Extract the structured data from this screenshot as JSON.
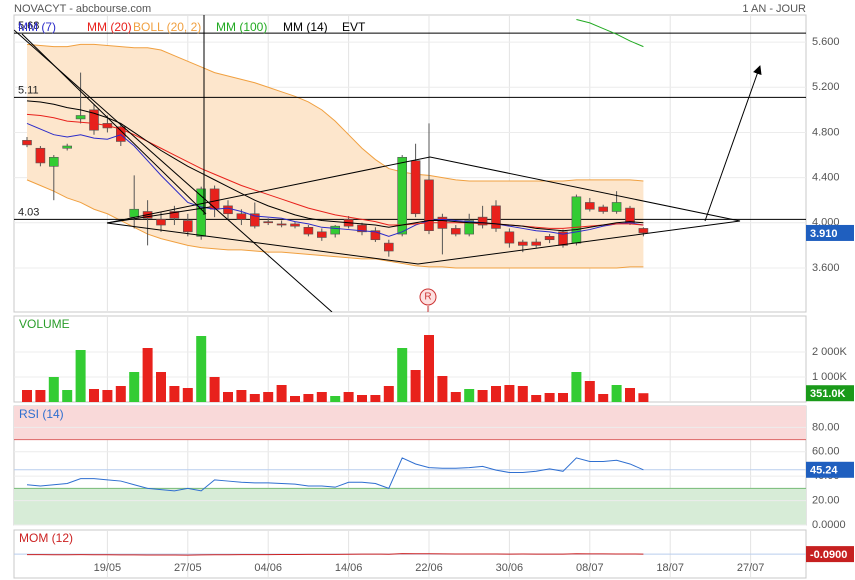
{
  "chart_data": [
    {
      "type": "candlestick",
      "title": "NOVACYT - abcbourse.com",
      "subtitle": "1 AN - JOUR",
      "categories": [
        null,
        null,
        null,
        null,
        null,
        null,
        "19/05",
        null,
        null,
        null,
        null,
        null,
        "27/05",
        null,
        null,
        null,
        null,
        null,
        "04/06",
        null,
        null,
        null,
        null,
        null,
        "14/06",
        null,
        null,
        null,
        null,
        null,
        "22/06",
        null,
        null,
        null,
        null,
        null,
        "30/06",
        null,
        null,
        null,
        null,
        null,
        "08/07",
        null,
        null,
        null,
        null,
        null,
        "18/07",
        null,
        null,
        null,
        null,
        null,
        "27/07",
        null,
        null,
        null,
        null
      ],
      "open": [
        4.73,
        4.66,
        4.5,
        4.66,
        4.92,
        5.0,
        4.88,
        4.85,
        4.05,
        4.1,
        4.03,
        4.1,
        4.02,
        3.88,
        4.3,
        4.15,
        4.08,
        4.08,
        4.01,
        3.99,
        3.99,
        3.96,
        3.92,
        3.9,
        4.03,
        3.98,
        3.93,
        3.82,
        3.9,
        4.55,
        4.38,
        4.05,
        3.95,
        3.9,
        4.05,
        4.15,
        3.92,
        3.83,
        3.83,
        3.88,
        3.92,
        3.82,
        4.18,
        4.14,
        4.1,
        4.13,
        3.95,
        null,
        null,
        null,
        null,
        null,
        null,
        null,
        null,
        null,
        null,
        null,
        null
      ],
      "high": [
        4.76,
        4.68,
        4.6,
        4.7,
        5.33,
        5.05,
        4.95,
        4.88,
        4.42,
        4.2,
        4.1,
        4.15,
        4.08,
        4.32,
        4.33,
        4.2,
        4.12,
        4.18,
        4.04,
        4.02,
        4.01,
        3.98,
        3.95,
        3.98,
        4.06,
        4.0,
        3.96,
        3.85,
        4.6,
        4.7,
        4.88,
        4.08,
        3.98,
        4.08,
        4.15,
        4.2,
        3.95,
        3.85,
        3.86,
        3.9,
        3.94,
        4.25,
        4.22,
        4.16,
        4.28,
        4.15,
        3.96,
        null,
        null,
        null,
        null,
        null,
        null,
        null,
        null,
        null,
        null,
        null,
        null
      ],
      "low": [
        4.67,
        4.5,
        4.2,
        4.64,
        4.88,
        4.78,
        4.8,
        4.68,
        3.95,
        3.8,
        3.92,
        3.98,
        3.88,
        3.85,
        4.05,
        4.03,
        3.98,
        3.95,
        3.98,
        3.96,
        3.95,
        3.88,
        3.84,
        3.87,
        3.95,
        3.89,
        3.83,
        3.7,
        3.88,
        4.05,
        3.9,
        3.72,
        3.88,
        3.88,
        3.95,
        3.92,
        3.78,
        3.74,
        3.78,
        3.82,
        3.78,
        3.8,
        4.1,
        4.08,
        4.08,
        3.98,
        3.88,
        null,
        null,
        null,
        null,
        null,
        null,
        null,
        null,
        null,
        null,
        null,
        null
      ],
      "close": [
        4.69,
        4.53,
        4.58,
        4.68,
        4.95,
        4.82,
        4.84,
        4.72,
        4.12,
        4.04,
        3.98,
        4.04,
        3.92,
        4.3,
        4.12,
        4.08,
        4.03,
        3.97,
        4.0,
        3.98,
        3.97,
        3.9,
        3.87,
        3.97,
        3.97,
        3.92,
        3.85,
        3.75,
        4.58,
        4.08,
        3.93,
        3.95,
        3.9,
        4.02,
        3.98,
        3.95,
        3.82,
        3.8,
        3.8,
        3.85,
        3.8,
        4.23,
        4.12,
        4.1,
        4.18,
        4.0,
        3.91,
        null,
        null,
        null,
        null,
        null,
        null,
        null,
        null,
        null,
        null,
        null,
        null
      ],
      "up_color": "#33cc33",
      "down_color": "#e8211c",
      "series": [
        {
          "name": "MM (7)",
          "color": "#2b2bc9",
          "values": [
            4.88,
            4.83,
            4.78,
            4.76,
            4.78,
            4.75,
            4.74,
            4.78,
            4.68,
            4.55,
            4.42,
            4.3,
            4.18,
            4.14,
            4.12,
            4.13,
            4.1,
            4.06,
            4.05,
            4.04,
            4.01,
            3.99,
            3.96,
            3.95,
            3.94,
            3.93,
            3.92,
            3.88,
            3.92,
            3.98,
            4.02,
            4.03,
            4.02,
            4.01,
            4.0,
            3.99,
            3.97,
            3.95,
            3.93,
            3.92,
            3.9,
            3.92,
            3.94,
            3.97,
            3.99,
            4.0,
            3.98,
            null,
            null,
            null,
            null,
            null,
            null,
            null,
            null,
            null,
            null,
            null,
            null
          ]
        },
        {
          "name": "MM (20)",
          "color": "#e8211c",
          "values": [
            4.96,
            4.95,
            4.93,
            4.9,
            4.89,
            4.88,
            4.86,
            4.83,
            4.78,
            4.72,
            4.66,
            4.6,
            4.54,
            4.48,
            4.43,
            4.38,
            4.33,
            4.29,
            4.25,
            4.21,
            4.17,
            4.13,
            4.1,
            4.07,
            4.05,
            4.03,
            4.01,
            3.98,
            3.98,
            3.99,
            4.0,
            4.0,
            4.0,
            4.0,
            3.99,
            3.99,
            3.98,
            3.97,
            3.96,
            3.95,
            3.95,
            3.96,
            3.97,
            3.98,
            3.99,
            3.99,
            3.98,
            null,
            null,
            null,
            null,
            null,
            null,
            null,
            null,
            null,
            null,
            null,
            null
          ]
        },
        {
          "name": "MM (100)",
          "color": "#22aa22",
          "values": [
            null,
            null,
            null,
            null,
            null,
            null,
            null,
            null,
            null,
            null,
            null,
            null,
            null,
            null,
            null,
            null,
            null,
            null,
            null,
            null,
            null,
            null,
            null,
            null,
            null,
            null,
            null,
            null,
            null,
            null,
            null,
            null,
            null,
            null,
            null,
            null,
            null,
            null,
            null,
            null,
            null,
            5.8,
            5.77,
            5.72,
            5.67,
            5.61,
            5.56,
            null,
            null,
            null,
            null,
            null,
            null,
            null,
            null,
            null,
            null,
            null,
            null
          ]
        },
        {
          "name": "MM (14)",
          "color": "#000000",
          "values": [
            5.08,
            5.07,
            5.05,
            5.02,
            5.0,
            4.97,
            4.93,
            4.88,
            4.8,
            4.72,
            4.64,
            4.57,
            4.5,
            4.44,
            4.38,
            4.32,
            4.26,
            4.2,
            4.15,
            4.11,
            4.07,
            4.04,
            4.02,
            4.01,
            4.0,
            3.99,
            3.98,
            3.96,
            3.98,
            4.0,
            4.02,
            4.02,
            4.01,
            4.0,
            4.0,
            3.99,
            3.98,
            3.97,
            3.95,
            3.94,
            3.93,
            3.94,
            3.96,
            3.98,
            4.0,
            4.01,
            4.0,
            null,
            null,
            null,
            null,
            null,
            null,
            null,
            null,
            null,
            null,
            null,
            null
          ]
        }
      ],
      "band": {
        "name": "BOLL (20, 2)",
        "color": "#f0a040",
        "fill": "#fde6cc",
        "upper": [
          5.58,
          5.57,
          5.56,
          5.56,
          5.58,
          5.58,
          5.57,
          5.56,
          5.55,
          5.55,
          5.53,
          5.48,
          5.43,
          5.38,
          5.33,
          5.3,
          5.27,
          5.24,
          5.2,
          5.16,
          5.12,
          5.07,
          5.0,
          4.9,
          4.78,
          4.66,
          4.56,
          4.48,
          4.45,
          4.43,
          4.42,
          4.4,
          4.38,
          4.37,
          4.37,
          4.37,
          4.37,
          4.37,
          4.37,
          4.37,
          4.37,
          4.38,
          4.38,
          4.38,
          4.38,
          4.38,
          4.37,
          null,
          null,
          null,
          null,
          null,
          null,
          null,
          null,
          null,
          null,
          null,
          null
        ],
        "lower": [
          4.38,
          4.33,
          4.28,
          4.22,
          4.18,
          4.12,
          4.08,
          4.02,
          3.96,
          3.9,
          3.86,
          3.83,
          3.8,
          3.78,
          3.77,
          3.76,
          3.76,
          3.75,
          3.74,
          3.74,
          3.73,
          3.72,
          3.71,
          3.7,
          3.69,
          3.68,
          3.68,
          3.66,
          3.64,
          3.62,
          3.61,
          3.61,
          3.6,
          3.6,
          3.6,
          3.6,
          3.6,
          3.6,
          3.6,
          3.6,
          3.6,
          3.6,
          3.6,
          3.6,
          3.6,
          3.61,
          3.61,
          null,
          null,
          null,
          null,
          null,
          null,
          null,
          null,
          null,
          null,
          null,
          null
        ]
      },
      "legend_extra": "EVT",
      "event_label": "R",
      "hlines": [
        5.68,
        5.11,
        4.03
      ],
      "ylim": [
        3.21,
        5.84
      ],
      "yticks": [
        {
          "value": 3.6,
          "label": "3.600"
        },
        {
          "value": 4.0,
          "label": "4.000"
        },
        {
          "value": 4.4,
          "label": "4.400"
        },
        {
          "value": 4.8,
          "label": "4.800"
        },
        {
          "value": 5.2,
          "label": "5.200"
        },
        {
          "value": 5.6,
          "label": "5.600"
        }
      ],
      "last": {
        "value": 3.91,
        "label": "3.910",
        "color": "#1f5fbf"
      },
      "grid": true
    },
    {
      "type": "bar",
      "title": "VOLUME",
      "color": "#2a9d2a",
      "values": [
        480,
        480,
        1000,
        480,
        2080,
        520,
        480,
        640,
        1200,
        2160,
        1200,
        640,
        560,
        2640,
        1000,
        400,
        480,
        320,
        400,
        680,
        240,
        320,
        400,
        240,
        400,
        280,
        280,
        640,
        2160,
        1280,
        2680,
        1040,
        400,
        520,
        480,
        640,
        680,
        640,
        280,
        360,
        360,
        1200,
        840,
        320,
        680,
        560,
        351,
        null,
        null,
        null,
        null,
        null,
        null,
        null,
        null,
        null,
        null,
        null,
        null
      ],
      "ylim": [
        0,
        3440
      ],
      "yticks": [
        {
          "value": 1000,
          "label": "1 000K"
        },
        {
          "value": 2000,
          "label": "2 000K"
        }
      ],
      "last": {
        "value": 351,
        "label": "351.0K",
        "color": "#1a9a1a"
      }
    },
    {
      "type": "line",
      "title": "RSI (14)",
      "color": "#2f6fd0",
      "values": [
        33,
        32,
        33,
        34,
        38,
        38,
        37,
        36,
        33,
        30,
        29,
        28,
        30,
        28,
        37,
        36,
        35,
        34.5,
        34.5,
        34,
        33.5,
        32,
        32,
        31,
        35,
        35,
        34,
        30,
        55,
        50,
        47,
        46.5,
        46.5,
        47,
        48,
        45,
        43,
        43,
        44,
        46,
        44,
        55,
        52,
        52,
        53,
        50,
        45.24,
        null,
        null,
        null,
        null,
        null,
        null,
        null,
        null,
        null,
        null,
        null,
        null
      ],
      "ylim": [
        0,
        97.5
      ],
      "yticks": [
        {
          "value": 0,
          "label": "0.0000"
        },
        {
          "value": 20,
          "label": "20.00"
        },
        {
          "value": 40,
          "label": "40.00"
        },
        {
          "value": 60,
          "label": "60.00"
        },
        {
          "value": 80,
          "label": "80.00"
        }
      ],
      "overbought": 70,
      "oversold": 30,
      "last": {
        "value": 45.24,
        "label": "45.24",
        "color": "#1f5fbf"
      }
    },
    {
      "type": "line",
      "title": "MOM (12)",
      "color": "#cc2222",
      "values": [
        -0.5,
        -0.55,
        -0.6,
        -0.6,
        -0.55,
        -0.6,
        -0.65,
        -0.7,
        -0.75,
        -0.8,
        -0.8,
        -0.85,
        -0.9,
        -0.7,
        -0.65,
        -0.6,
        -0.55,
        -0.5,
        -0.5,
        -0.45,
        -0.4,
        -0.35,
        -0.3,
        -0.3,
        -0.2,
        -0.15,
        -0.1,
        -0.2,
        0.3,
        0.2,
        0.25,
        0.1,
        0.05,
        0,
        -0.05,
        0,
        -0.1,
        -0.05,
        -0.1,
        -0.15,
        -0.1,
        0.2,
        0.15,
        0.1,
        0.05,
        0,
        -0.09,
        null,
        null,
        null,
        null,
        null,
        null,
        null,
        null,
        null,
        null,
        null,
        null
      ],
      "ylim": [
        -20,
        20
      ],
      "last": {
        "value": -0.09,
        "label": "-0.0900",
        "color": "#c62020"
      }
    }
  ]
}
